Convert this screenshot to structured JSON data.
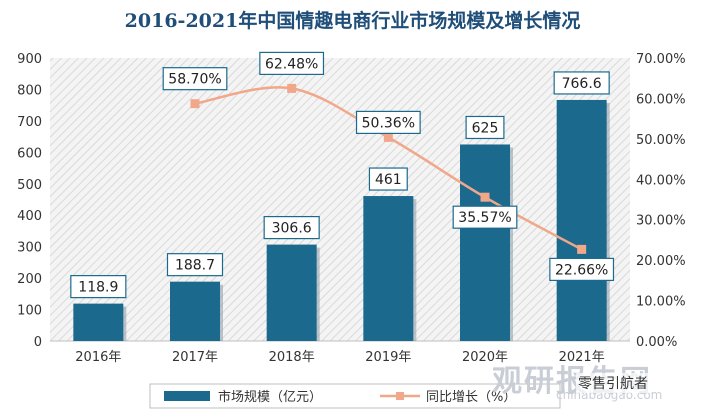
{
  "chart_data": {
    "type": "bar",
    "title": "2016-2021年中国情趣电商行业市场规模及增长情况",
    "categories": [
      "2016年",
      "2017年",
      "2018年",
      "2019年",
      "2020年",
      "2021年"
    ],
    "series": [
      {
        "name": "市场规模（亿元）",
        "type": "bar",
        "axis": "left",
        "values": [
          118.9,
          188.7,
          306.6,
          461,
          625,
          766.6
        ],
        "labels": [
          "118.9",
          "188.7",
          "306.6",
          "461",
          "625",
          "766.6"
        ],
        "color": "#1b6a8e"
      },
      {
        "name": "同比增长（%）",
        "type": "line",
        "axis": "right",
        "values": [
          null,
          58.7,
          62.48,
          50.36,
          35.57,
          22.66
        ],
        "labels": [
          "",
          "58.70%",
          "62.48%",
          "50.36%",
          "35.57%",
          "22.66%"
        ],
        "color": "#f0a78a"
      }
    ],
    "y_left": {
      "min": 0,
      "max": 900,
      "step": 100,
      "ticks": [
        "0",
        "100",
        "200",
        "300",
        "400",
        "500",
        "600",
        "700",
        "800",
        "900"
      ]
    },
    "y_right": {
      "min": 0,
      "max": 70,
      "step": 10,
      "ticks": [
        "0.00%",
        "10.00%",
        "20.00%",
        "30.00%",
        "40.00%",
        "50.00%",
        "60.00%",
        "70.00%"
      ]
    },
    "legend": {
      "position": "bottom"
    },
    "grid": false
  },
  "watermark": {
    "main": "观研报告网",
    "sub": "chinabaogao.com"
  },
  "source_badge": "零售引航者"
}
